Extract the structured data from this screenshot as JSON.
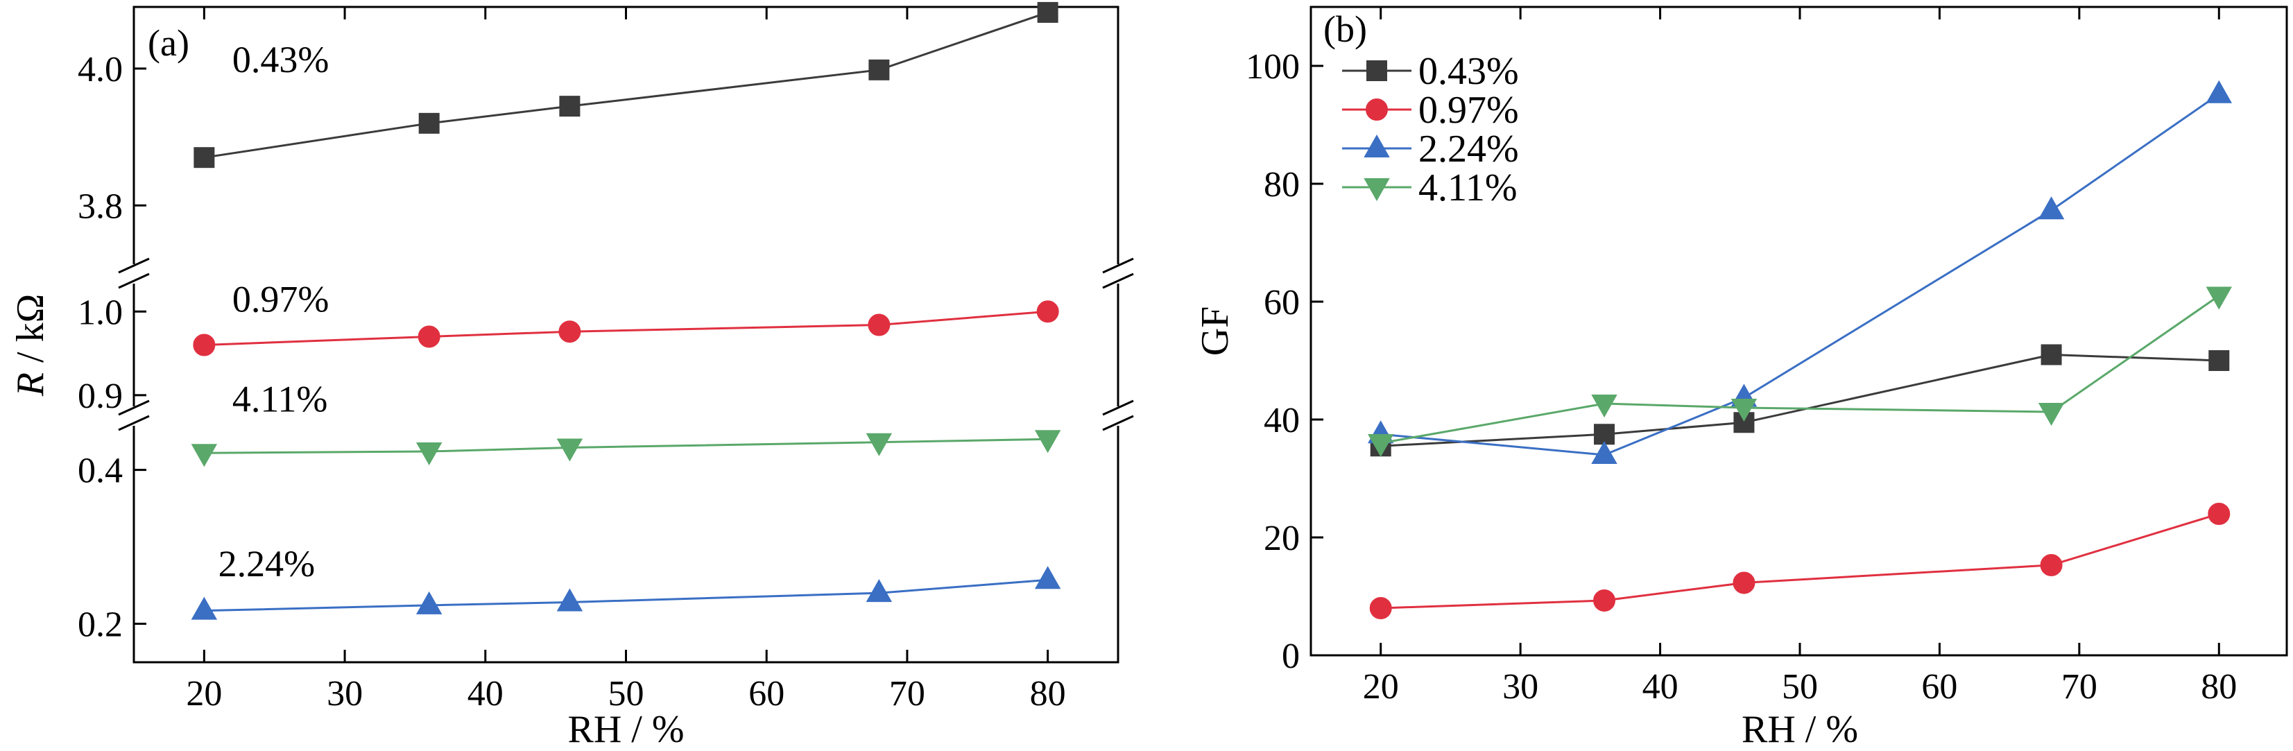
{
  "chart_data": [
    {
      "type": "line",
      "panel_label": "(a)",
      "xlabel": "RH / %",
      "ylabel_italic": "R",
      "ylabel_rest": " / kΩ",
      "xlim": [
        15,
        85
      ],
      "x_ticks": [
        20,
        30,
        40,
        50,
        60,
        70,
        80
      ],
      "y_segments": [
        {
          "ylim": [
            0.15,
            0.47
          ],
          "ticks": [
            0.2,
            0.4
          ]
        },
        {
          "ylim": [
            0.875,
            1.045
          ],
          "ticks": [
            0.9,
            1.0
          ]
        },
        {
          "ylim": [
            3.7,
            4.09
          ],
          "ticks": [
            3.8,
            4.0
          ]
        }
      ],
      "series": [
        {
          "name": "0.43%",
          "color": "#3b3b3b",
          "marker": "square",
          "segment": 2,
          "x": [
            20,
            36,
            46,
            68,
            80
          ],
          "y": [
            3.87,
            3.92,
            3.945,
            3.998,
            4.082
          ],
          "label_x": 22,
          "label_y": 3.995
        },
        {
          "name": "0.97%",
          "color": "#e03040",
          "marker": "circle",
          "segment": 1,
          "x": [
            20,
            36,
            46,
            68,
            80
          ],
          "y": [
            0.96,
            0.97,
            0.976,
            0.984,
            1.0
          ],
          "label_x": 22,
          "label_y": 1.0
        },
        {
          "name": "4.11%",
          "color": "#5aa86a",
          "marker": "triangle-down",
          "segment": 0,
          "x": [
            20,
            36,
            46,
            68,
            80
          ],
          "y": [
            0.422,
            0.424,
            0.429,
            0.436,
            0.44
          ],
          "label_x": 22,
          "label_y": 0.476
        },
        {
          "name": "2.24%",
          "color": "#3a6fc4",
          "marker": "triangle-up",
          "segment": 0,
          "x": [
            20,
            36,
            46,
            68,
            80
          ],
          "y": [
            0.217,
            0.224,
            0.228,
            0.24,
            0.257
          ],
          "label_x": 21,
          "label_y": 0.262
        }
      ]
    },
    {
      "type": "line",
      "panel_label": "(b)",
      "xlabel": "RH / %",
      "ylabel": "GF",
      "xlim": [
        15,
        85
      ],
      "ylim": [
        0,
        110
      ],
      "x_ticks": [
        20,
        30,
        40,
        50,
        60,
        70,
        80
      ],
      "y_ticks": [
        0,
        20,
        40,
        60,
        80,
        100
      ],
      "legend_position": "top-left",
      "series": [
        {
          "name": "0.43%",
          "color": "#3b3b3b",
          "marker": "square",
          "x": [
            20,
            36,
            46,
            68,
            80
          ],
          "y": [
            35.5,
            37.5,
            39.5,
            51,
            50
          ]
        },
        {
          "name": "0.97%",
          "color": "#e03040",
          "marker": "circle",
          "x": [
            20,
            36,
            46,
            68,
            80
          ],
          "y": [
            8,
            9.3,
            12.3,
            15.3,
            24
          ]
        },
        {
          "name": "2.24%",
          "color": "#3a6fc4",
          "marker": "triangle-up",
          "x": [
            20,
            36,
            46,
            68,
            80
          ],
          "y": [
            37.5,
            34,
            43.7,
            75.5,
            95.2
          ]
        },
        {
          "name": "4.11%",
          "color": "#5aa86a",
          "marker": "triangle-down",
          "x": [
            20,
            36,
            46,
            68,
            80
          ],
          "y": [
            36,
            42.7,
            42,
            41.3,
            61
          ]
        }
      ]
    }
  ]
}
